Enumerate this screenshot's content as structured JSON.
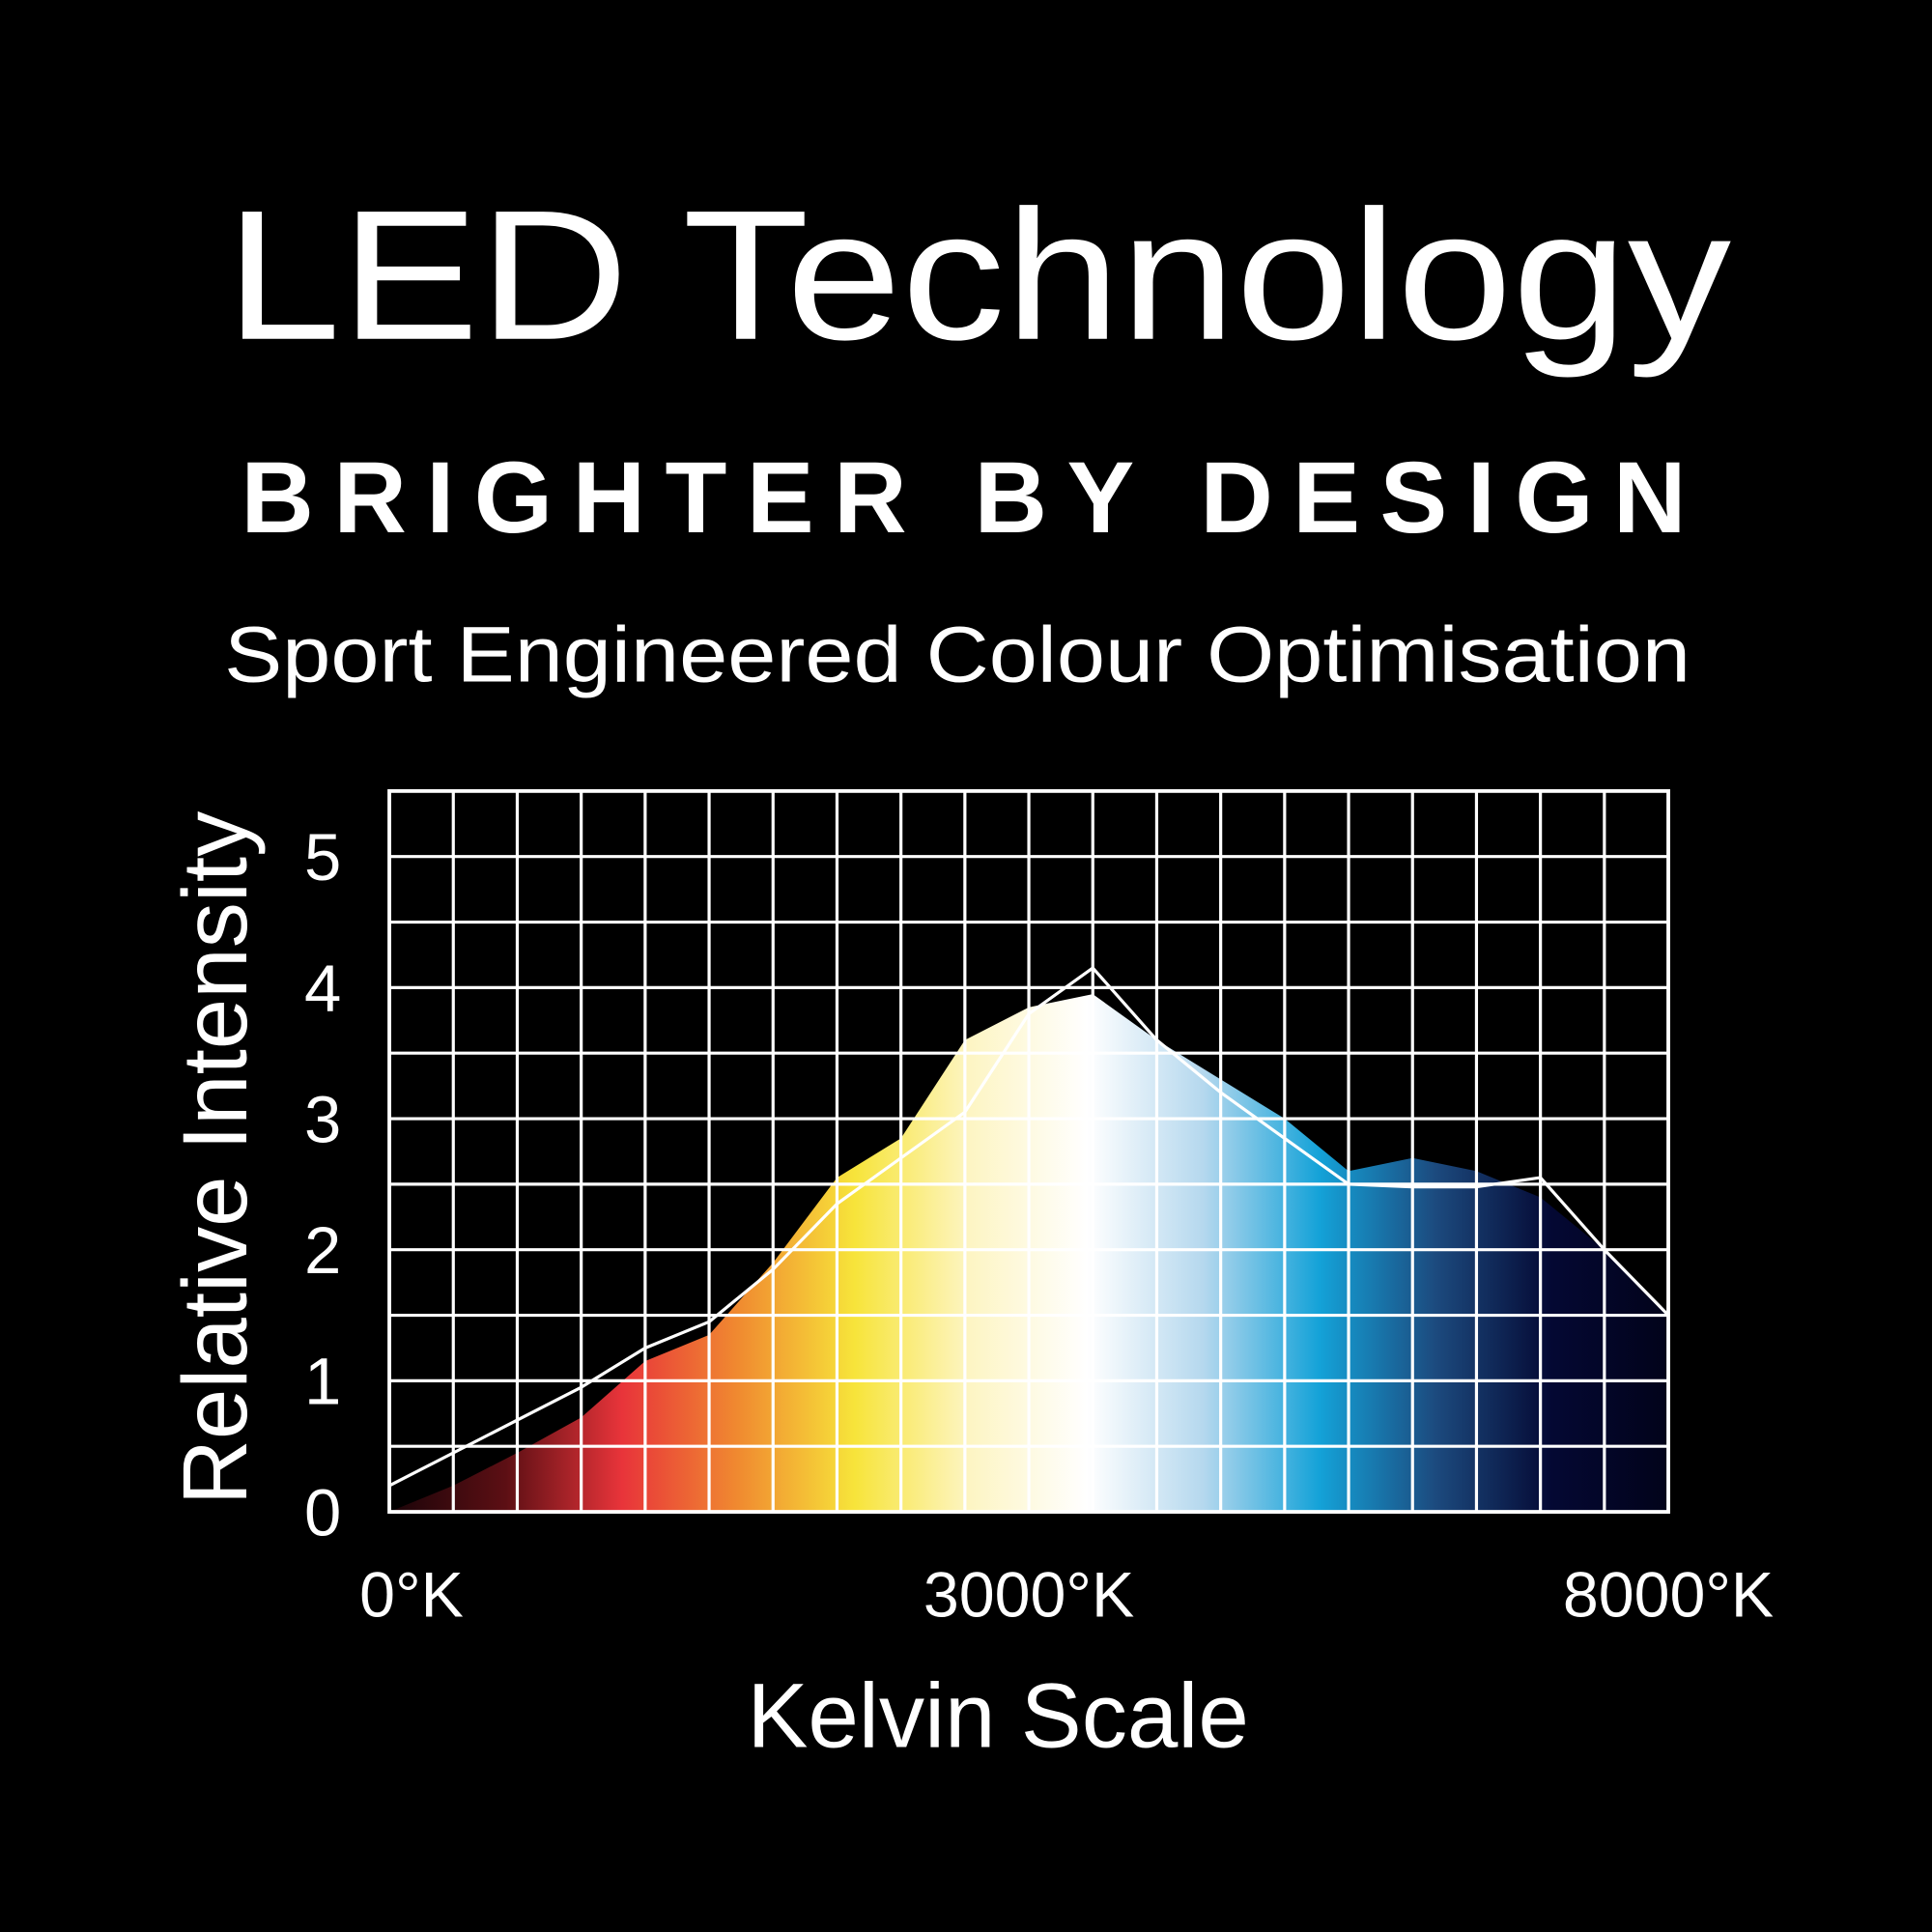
{
  "chart_data": {
    "type": "area",
    "title": "LED Technology",
    "subtitle": "BRIGHTER BY DESIGN",
    "tagline": "Sport Engineered Colour Optimisation",
    "ylabel": "Relative Intensity",
    "xlabel": "Kelvin Scale",
    "categories": [
      "0°K",
      null,
      null,
      null,
      null,
      null,
      null,
      null,
      null,
      null,
      "3000°K",
      null,
      null,
      null,
      null,
      null,
      null,
      null,
      null,
      null,
      "8000°K"
    ],
    "series": [
      {
        "kind": "area",
        "colors": [
          "#1a0408",
          "#5c0f14",
          "#e8343a",
          "#f08a30",
          "#f7e43a",
          "#fdf5c4",
          "#ffffff",
          "#b5d8ee",
          "#14a2d8",
          "#1c4a7e",
          "#040833",
          "#02031a"
        ],
        "values": [
          0,
          0.2,
          0.45,
          0.72,
          1.15,
          1.35,
          1.9,
          2.55,
          2.85,
          3.6,
          3.85,
          3.95,
          3.6,
          3.3,
          3.0,
          2.6,
          2.7,
          2.6,
          2.4,
          2.0,
          1.5
        ]
      },
      {
        "kind": "line",
        "color": "#ffffff",
        "values": [
          0.2,
          0.45,
          0.7,
          0.95,
          1.25,
          1.45,
          1.85,
          2.35,
          2.7,
          3.05,
          3.8,
          4.15,
          3.6,
          3.2,
          2.85,
          2.5,
          2.48,
          2.48,
          2.55,
          2.0,
          1.5
        ]
      }
    ],
    "ylim": [
      0,
      5.5
    ],
    "yticks": [
      0,
      1,
      2,
      3,
      4,
      5
    ],
    "minor_yticks": [
      0.5,
      1.5,
      2.5,
      3.5,
      4.5,
      5.5
    ],
    "grid": true,
    "grid_color": "#ffffff",
    "background": "#000000"
  }
}
